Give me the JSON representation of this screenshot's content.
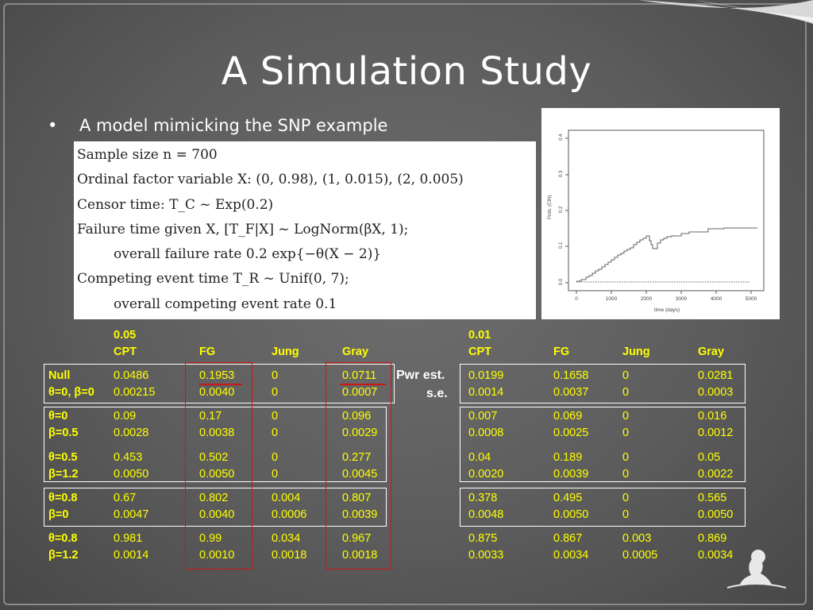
{
  "title": "A Simulation Study",
  "bullet": "A model mimicking the SNP example",
  "model_lines": [
    "Sample size n = 700",
    "Ordinal factor variable X: (0, 0.98), (1, 0.015), (2, 0.005)",
    "Censor time: T_C ~ Exp(0.2)",
    "Failure time given X, [T_F|X] ~ LogNorm(βX, 1);",
    "overall failure rate 0.2 exp{−θ(X − 2)}",
    "Competing event time T_R ~ Unif(0, 7);",
    "overall competing event rate 0.1"
  ],
  "plot": {
    "ylabel": "Prob. (CIN)",
    "xlabel": "time (days)",
    "x_ticks": [
      "0",
      "1000",
      "2000",
      "3000",
      "4000",
      "5000"
    ],
    "y_ticks": [
      "0.0",
      "0.1",
      "0.2",
      "0.3",
      "0.4"
    ]
  },
  "table": {
    "alpha_left": "0.05",
    "alpha_right": "0.01",
    "col_headers": [
      "CPT",
      "FG",
      "Jung",
      "Gray"
    ],
    "pwr_label": "Pwr est.",
    "se_label": "s.e.",
    "rows": [
      {
        "label1": "Null",
        "label2": "θ=0, β=0",
        "left1": [
          "0.0486",
          "0.1953",
          "0",
          "0.0711"
        ],
        "left2": [
          "0.00215",
          "0.0040",
          "0",
          "0.0007"
        ],
        "right1": [
          "0.0199",
          "0.1658",
          "0",
          "0.0281"
        ],
        "right2": [
          "0.0014",
          "0.0037",
          "0",
          "0.0003"
        ]
      },
      {
        "label1": "θ=0",
        "label2": "β=0.5",
        "left1": [
          "0.09",
          "0.17",
          "0",
          "0.096"
        ],
        "left2": [
          "0.0028",
          "0.0038",
          "0",
          "0.0029"
        ],
        "right1": [
          "0.007",
          "0.069",
          "0",
          "0.016"
        ],
        "right2": [
          "0.0008",
          "0.0025",
          "0",
          "0.0012"
        ]
      },
      {
        "label1": "θ=0.5",
        "label2": "β=1.2",
        "left1": [
          "0.453",
          "0.502",
          "0",
          "0.277"
        ],
        "left2": [
          "0.0050",
          "0.0050",
          "0",
          "0.0045"
        ],
        "right1": [
          "0.04",
          "0.189",
          "0",
          "0.05"
        ],
        "right2": [
          "0.0020",
          "0.0039",
          "0",
          "0.0022"
        ]
      },
      {
        "label1": "θ=0.8",
        "label2": "β=0",
        "left1": [
          "0.67",
          "0.802",
          "0.004",
          "0.807"
        ],
        "left2": [
          "0.0047",
          "0.0040",
          "0.0006",
          "0.0039"
        ],
        "right1": [
          "0.378",
          "0.495",
          "0",
          "0.565"
        ],
        "right2": [
          "0.0048",
          "0.0050",
          "0",
          "0.0050"
        ]
      },
      {
        "label1": "θ=0.8",
        "label2": "β=1.2",
        "left1": [
          "0.981",
          "0.99",
          "0.034",
          "0.967"
        ],
        "left2": [
          "0.0014",
          "0.0010",
          "0.0018",
          "0.0018"
        ],
        "right1": [
          "0.875",
          "0.867",
          "0.003",
          "0.869"
        ],
        "right2": [
          "0.0033",
          "0.0034",
          "0.0005",
          "0.0034"
        ]
      }
    ]
  },
  "colors": {
    "table_text": "#ffff00",
    "highlight": "#d01515",
    "title": "#ffffff"
  }
}
